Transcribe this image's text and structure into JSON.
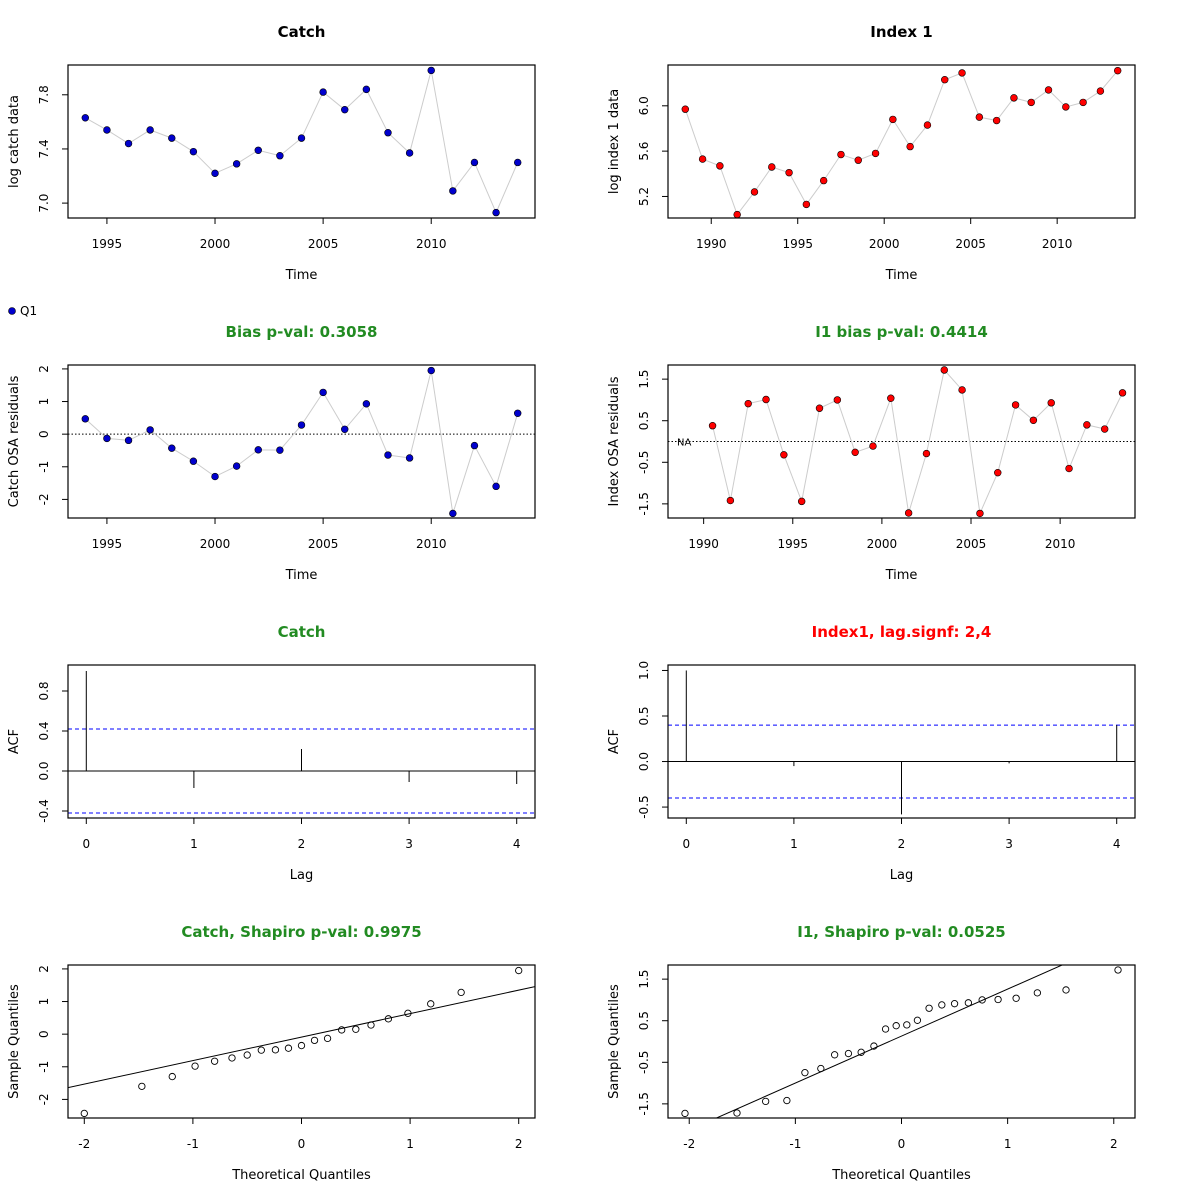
{
  "palette": {
    "green_title": "#228B22",
    "red_title": "#ff0000",
    "catch_point": "#0000cd",
    "index_point": "#ff0000",
    "connector": "#cccccc",
    "confidence_line": "#0000ff"
  },
  "legend": {
    "label": "Q1",
    "color": "#0000cd"
  },
  "chart_data": [
    {
      "id": "catch-data",
      "type": "scatter",
      "connected": true,
      "title": "Catch",
      "title_color": "#000000",
      "xlabel": "Time",
      "ylabel": "log catch data",
      "xlim": [
        1993.2,
        2014.8
      ],
      "ylim": [
        6.89,
        8.02
      ],
      "xticks": [
        1995,
        2000,
        2005,
        2010
      ],
      "yticks": [
        7.0,
        7.4,
        7.8
      ],
      "ytick_labels": [
        "7.0",
        "7.4",
        "7.8"
      ],
      "point_color": "#0000cd",
      "x": [
        1994,
        1995,
        1996,
        1997,
        1998,
        1999,
        2000,
        2001,
        2002,
        2003,
        2004,
        2005,
        2006,
        2007,
        2008,
        2009,
        2010,
        2011,
        2012,
        2013,
        2014
      ],
      "y": [
        7.63,
        7.54,
        7.44,
        7.54,
        7.48,
        7.38,
        7.22,
        7.29,
        7.39,
        7.35,
        7.48,
        7.82,
        7.69,
        7.84,
        7.52,
        7.37,
        7.98,
        7.09,
        7.3,
        6.93,
        7.3
      ]
    },
    {
      "id": "index-data",
      "type": "scatter",
      "connected": true,
      "title": "Index 1",
      "title_color": "#000000",
      "xlabel": "Time",
      "ylabel": "log index 1 data",
      "xlim": [
        1987.5,
        2014.5
      ],
      "ylim": [
        5.01,
        6.36
      ],
      "xticks": [
        1990,
        1995,
        2000,
        2005,
        2010
      ],
      "yticks": [
        5.2,
        5.6,
        6.0
      ],
      "ytick_labels": [
        "5.2",
        "5.6",
        "6.0"
      ],
      "point_color": "#ff0000",
      "x": [
        1988.5,
        1989.5,
        1990.5,
        1991.5,
        1992.5,
        1993.5,
        1994.5,
        1995.5,
        1996.5,
        1997.5,
        1998.5,
        1999.5,
        2000.5,
        2001.5,
        2002.5,
        2003.5,
        2004.5,
        2005.5,
        2006.5,
        2007.5,
        2008.5,
        2009.5,
        2010.5,
        2011.5,
        2012.5,
        2013.5
      ],
      "y": [
        5.97,
        5.53,
        5.47,
        5.04,
        5.24,
        5.46,
        5.41,
        5.13,
        5.34,
        5.57,
        5.52,
        5.58,
        5.88,
        5.64,
        5.83,
        6.23,
        6.29,
        5.9,
        5.87,
        6.07,
        6.03,
        6.14,
        5.99,
        6.03,
        6.13,
        6.31
      ]
    },
    {
      "id": "catch-resid",
      "type": "scatter",
      "connected": true,
      "title": "Bias p-val: 0.3058",
      "title_color": "#228B22",
      "xlabel": "Time",
      "ylabel": "Catch OSA residuals",
      "xlim": [
        1993.2,
        2014.8
      ],
      "ylim": [
        -2.57,
        2.12
      ],
      "xticks": [
        1995,
        2000,
        2005,
        2010
      ],
      "yticks": [
        -2,
        -1,
        0,
        1,
        2
      ],
      "ytick_labels": [
        "-2",
        "-1",
        "0",
        "1",
        "2"
      ],
      "point_color": "#0000cd",
      "zero_line": true,
      "x": [
        1994,
        1995,
        1996,
        1997,
        1998,
        1999,
        2000,
        2001,
        2002,
        2003,
        2004,
        2005,
        2006,
        2007,
        2008,
        2009,
        2010,
        2011,
        2012,
        2013,
        2014
      ],
      "y": [
        0.47,
        -0.13,
        -0.19,
        0.13,
        -0.43,
        -0.83,
        -1.3,
        -0.98,
        -0.48,
        -0.49,
        0.28,
        1.28,
        0.15,
        0.93,
        -0.64,
        -0.73,
        1.95,
        -2.43,
        -0.35,
        -1.6,
        0.64
      ]
    },
    {
      "id": "index-resid",
      "type": "scatter",
      "connected": true,
      "title": "I1 bias p-val: 0.4414",
      "title_color": "#228B22",
      "xlabel": "Time",
      "ylabel": "Index OSA residuals",
      "xlim": [
        1988.0,
        2014.2
      ],
      "ylim": [
        -1.84,
        1.84
      ],
      "xticks": [
        1990,
        1995,
        2000,
        2005,
        2010
      ],
      "yticks": [
        -1.5,
        -0.5,
        0.5,
        1.5
      ],
      "ytick_labels": [
        "-1.5",
        "-0.5",
        "0.5",
        "1.5"
      ],
      "point_color": "#ff0000",
      "zero_line": true,
      "annotation": "NA",
      "x": [
        1990.5,
        1991.5,
        1992.5,
        1993.5,
        1994.5,
        1995.5,
        1996.5,
        1997.5,
        1998.5,
        1999.5,
        2000.5,
        2001.5,
        2002.5,
        2003.5,
        2004.5,
        2005.5,
        2006.5,
        2007.5,
        2008.5,
        2009.5,
        2010.5,
        2011.5,
        2012.5,
        2013.5
      ],
      "y": [
        0.38,
        -1.42,
        0.91,
        1.01,
        -0.32,
        -1.44,
        0.8,
        1.0,
        -0.26,
        -0.11,
        1.04,
        -1.72,
        -0.29,
        1.72,
        1.24,
        -1.73,
        -0.75,
        0.88,
        0.51,
        0.93,
        -0.65,
        0.4,
        0.3,
        1.17
      ]
    },
    {
      "id": "catch-acf",
      "type": "bar",
      "title": "Catch",
      "title_color": "#228B22",
      "xlabel": "Lag",
      "ylabel": "ACF",
      "xlim": [
        -0.17,
        4.17
      ],
      "ylim": [
        -0.47,
        1.06
      ],
      "xticks": [
        0,
        1,
        2,
        3,
        4
      ],
      "yticks": [
        -0.4,
        0.0,
        0.4,
        0.8
      ],
      "ytick_labels": [
        "-0.4",
        "0.0",
        "0.4",
        "0.8"
      ],
      "lags": [
        0,
        1,
        2,
        3,
        4
      ],
      "values": [
        1.0,
        -0.17,
        0.22,
        -0.11,
        -0.13
      ],
      "conf_limit": 0.42
    },
    {
      "id": "index-acf",
      "type": "bar",
      "title": "Index1, lag.signf: 2,4",
      "title_color": "#ff0000",
      "xlabel": "Lag",
      "ylabel": "ACF",
      "xlim": [
        -0.17,
        4.17
      ],
      "ylim": [
        -0.62,
        1.06
      ],
      "xticks": [
        0,
        1,
        2,
        3,
        4
      ],
      "yticks": [
        -0.5,
        0.0,
        0.5,
        1.0
      ],
      "ytick_labels": [
        "-0.5",
        "0.0",
        "0.5",
        "1.0"
      ],
      "lags": [
        0,
        1,
        2,
        3,
        4
      ],
      "values": [
        1.0,
        -0.05,
        -0.58,
        -0.02,
        0.4
      ],
      "conf_limit": 0.4
    },
    {
      "id": "catch-qq",
      "type": "scatter",
      "qq": true,
      "title": "Catch, Shapiro p-val: 0.9975",
      "title_color": "#228B22",
      "xlabel": "Theoretical Quantiles",
      "ylabel": "Sample Quantiles",
      "xlim": [
        -2.15,
        2.15
      ],
      "ylim": [
        -2.57,
        2.12
      ],
      "xticks": [
        -2,
        -1,
        0,
        1,
        2
      ],
      "yticks": [
        -2,
        -1,
        0,
        1,
        2
      ],
      "ytick_labels": [
        "-2",
        "-1",
        "0",
        "1",
        "2"
      ],
      "ref_line": {
        "slope": 0.72,
        "intercept": -0.09
      },
      "x": [
        -2.0,
        -1.47,
        -1.19,
        -0.98,
        -0.8,
        -0.64,
        -0.5,
        -0.37,
        -0.24,
        -0.12,
        0.0,
        0.12,
        0.24,
        0.37,
        0.5,
        0.64,
        0.8,
        0.98,
        1.19,
        1.47,
        2.0
      ],
      "y": [
        -2.43,
        -1.6,
        -1.3,
        -0.98,
        -0.83,
        -0.73,
        -0.64,
        -0.49,
        -0.48,
        -0.43,
        -0.35,
        -0.19,
        -0.13,
        0.13,
        0.15,
        0.28,
        0.47,
        0.64,
        0.93,
        1.28,
        1.95
      ]
    },
    {
      "id": "index-qq",
      "type": "scatter",
      "qq": true,
      "title": "I1, Shapiro p-val: 0.0525",
      "title_color": "#228B22",
      "xlabel": "Theoretical Quantiles",
      "ylabel": "Sample Quantiles",
      "xlim": [
        -2.2,
        2.2
      ],
      "ylim": [
        -1.84,
        1.84
      ],
      "xticks": [
        -2,
        -1,
        0,
        1,
        2
      ],
      "yticks": [
        -1.5,
        -0.5,
        0.5,
        1.5
      ],
      "ytick_labels": [
        "-1.5",
        "-0.5",
        "0.5",
        "1.5"
      ],
      "ref_line": {
        "slope": 1.13,
        "intercept": 0.13
      },
      "x": [
        -2.04,
        -1.55,
        -1.28,
        -1.08,
        -0.91,
        -0.76,
        -0.63,
        -0.5,
        -0.38,
        -0.26,
        -0.15,
        -0.05,
        0.05,
        0.15,
        0.26,
        0.38,
        0.5,
        0.63,
        0.76,
        0.91,
        1.08,
        1.28,
        1.55,
        2.04
      ],
      "y": [
        -1.73,
        -1.72,
        -1.44,
        -1.42,
        -0.75,
        -0.65,
        -0.32,
        -0.29,
        -0.26,
        -0.11,
        0.3,
        0.38,
        0.4,
        0.51,
        0.8,
        0.88,
        0.91,
        0.93,
        1.0,
        1.01,
        1.04,
        1.17,
        1.24,
        1.72
      ]
    }
  ]
}
